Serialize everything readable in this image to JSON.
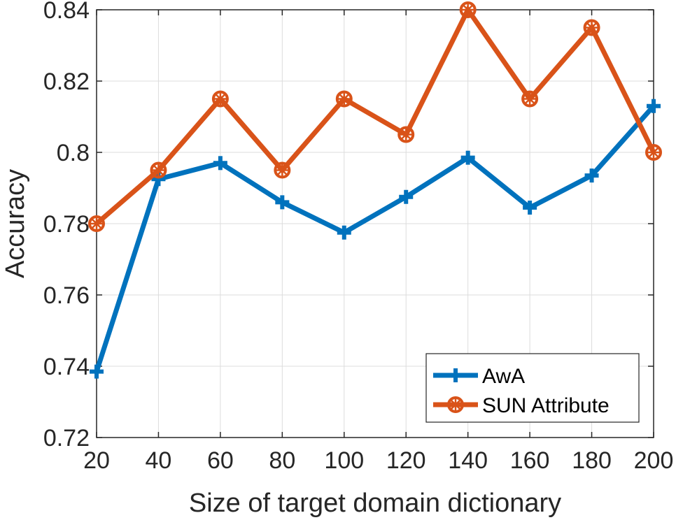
{
  "chart_data": {
    "type": "line",
    "title": "",
    "xlabel": "Size of target domain dictionary",
    "ylabel": "Accuracy",
    "x": [
      20,
      40,
      60,
      80,
      100,
      120,
      140,
      160,
      180,
      200
    ],
    "xlim": [
      20,
      200
    ],
    "ylim": [
      0.72,
      0.84
    ],
    "xticks": [
      "20",
      "40",
      "60",
      "80",
      "100",
      "120",
      "140",
      "160",
      "180",
      "200"
    ],
    "yticks": [
      "0.72",
      "0.74",
      "0.76",
      "0.78",
      "0.8",
      "0.82",
      "0.84"
    ],
    "grid": true,
    "legend_position": "bottom-right",
    "series": [
      {
        "name": "AwA",
        "color": "#0072BD",
        "marker": "plus",
        "values": [
          0.7385,
          0.7925,
          0.797,
          0.786,
          0.7775,
          0.7875,
          0.7985,
          0.7845,
          0.7935,
          0.813
        ]
      },
      {
        "name": "SUN Attribute",
        "color": "#D95319",
        "marker": "circle-star",
        "values": [
          0.78,
          0.795,
          0.815,
          0.795,
          0.815,
          0.805,
          0.84,
          0.815,
          0.835,
          0.8
        ]
      }
    ]
  }
}
